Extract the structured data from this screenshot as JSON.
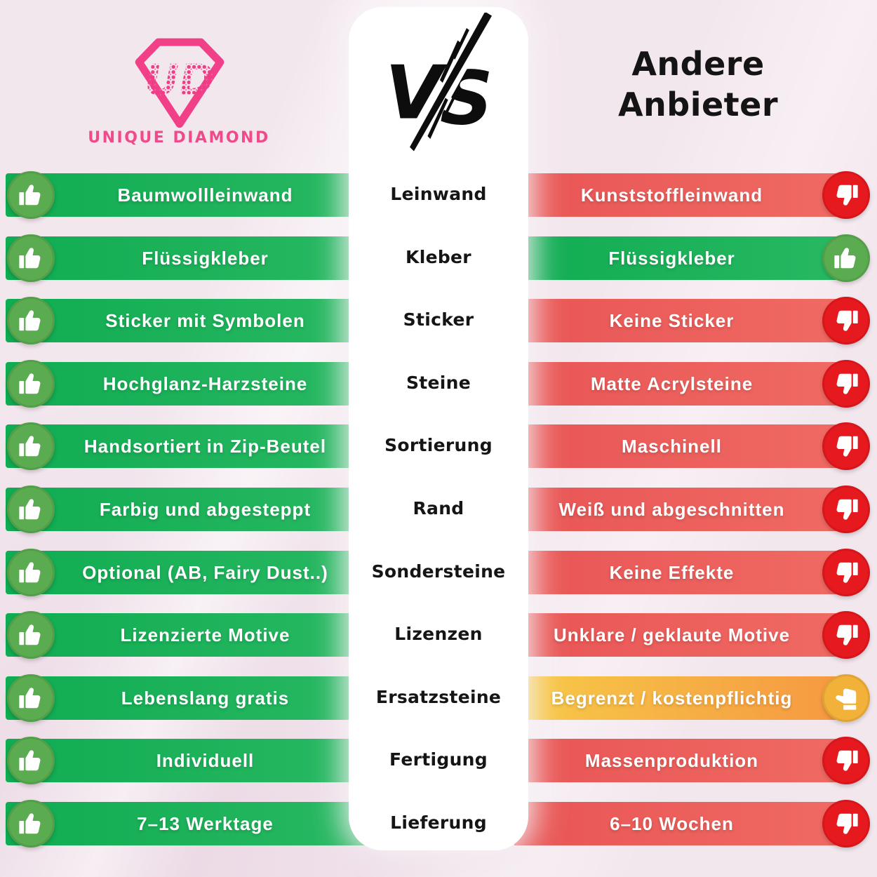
{
  "brand": {
    "monogram": "UD",
    "name": "UNIQUE DIAMOND"
  },
  "versus_label": "VS",
  "competitor_title": {
    "line1": "Andere",
    "line2": "Anbieter"
  },
  "colors": {
    "background": "#f3e7ee",
    "brand_pink": "#f04a8b",
    "positive_bar": "#1bb258",
    "positive_circle": "#5bab50",
    "negative_bar": "#ee5c5c",
    "negative_circle": "#e6191f",
    "warning_bar_start": "#f7ca47",
    "warning_bar_end": "#f69842",
    "warning_circle": "#f2b138"
  },
  "rows": [
    {
      "category": "Leinwand",
      "left": {
        "text": "Baumwollleinwand",
        "verdict": "positive"
      },
      "right": {
        "text": "Kunststoffleinwand",
        "verdict": "negative"
      }
    },
    {
      "category": "Kleber",
      "left": {
        "text": "Flüssigkleber",
        "verdict": "positive"
      },
      "right": {
        "text": "Flüssigkleber",
        "verdict": "positive"
      }
    },
    {
      "category": "Sticker",
      "left": {
        "text": "Sticker mit Symbolen",
        "verdict": "positive"
      },
      "right": {
        "text": "Keine Sticker",
        "verdict": "negative"
      }
    },
    {
      "category": "Steine",
      "left": {
        "text": "Hochglanz-Harzsteine",
        "verdict": "positive"
      },
      "right": {
        "text": "Matte Acrylsteine",
        "verdict": "negative"
      }
    },
    {
      "category": "Sortierung",
      "left": {
        "text": "Handsortiert in Zip-Beutel",
        "verdict": "positive"
      },
      "right": {
        "text": "Maschinell",
        "verdict": "negative"
      }
    },
    {
      "category": "Rand",
      "left": {
        "text": "Farbig und abgesteppt",
        "verdict": "positive"
      },
      "right": {
        "text": "Weiß und abgeschnitten",
        "verdict": "negative"
      }
    },
    {
      "category": "Sondersteine",
      "left": {
        "text": "Optional (AB, Fairy Dust..)",
        "verdict": "positive"
      },
      "right": {
        "text": "Keine Effekte",
        "verdict": "negative"
      }
    },
    {
      "category": "Lizenzen",
      "left": {
        "text": "Lizenzierte Motive",
        "verdict": "positive"
      },
      "right": {
        "text": "Unklare / geklaute Motive",
        "verdict": "negative"
      }
    },
    {
      "category": "Ersatzsteine",
      "left": {
        "text": "Lebenslang gratis",
        "verdict": "positive"
      },
      "right": {
        "text": "Begrenzt / kostenpflichtig",
        "verdict": "warning"
      }
    },
    {
      "category": "Fertigung",
      "left": {
        "text": "Individuell",
        "verdict": "positive"
      },
      "right": {
        "text": "Massenproduktion",
        "verdict": "negative"
      }
    },
    {
      "category": "Lieferung",
      "left": {
        "text": "7–13 Werktage",
        "verdict": "positive"
      },
      "right": {
        "text": "6–10 Wochen",
        "verdict": "negative"
      }
    }
  ]
}
